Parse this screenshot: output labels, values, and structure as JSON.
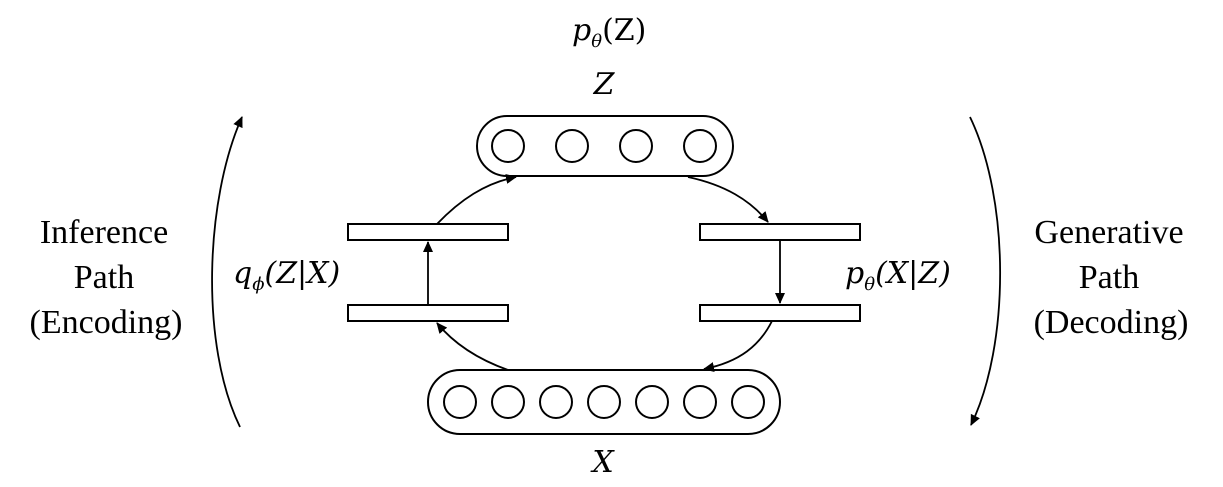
{
  "diagram": {
    "top_prior": {
      "p": "p",
      "theta": "θ",
      "arg": "(Z)"
    },
    "latent_label": "Z",
    "observed_label": "X",
    "latent_units": 4,
    "observed_units": 7,
    "encoder": {
      "q": "q",
      "phi": "ϕ",
      "arg": "(Z|X)"
    },
    "decoder": {
      "p": "p",
      "theta": "θ",
      "arg": "(X|Z)"
    },
    "left_side": {
      "line1": "Inference",
      "line2": "Path",
      "line3": "(Encoding)"
    },
    "right_side": {
      "line1": "Generative",
      "line2": "Path",
      "line3": "(Decoding)"
    }
  }
}
